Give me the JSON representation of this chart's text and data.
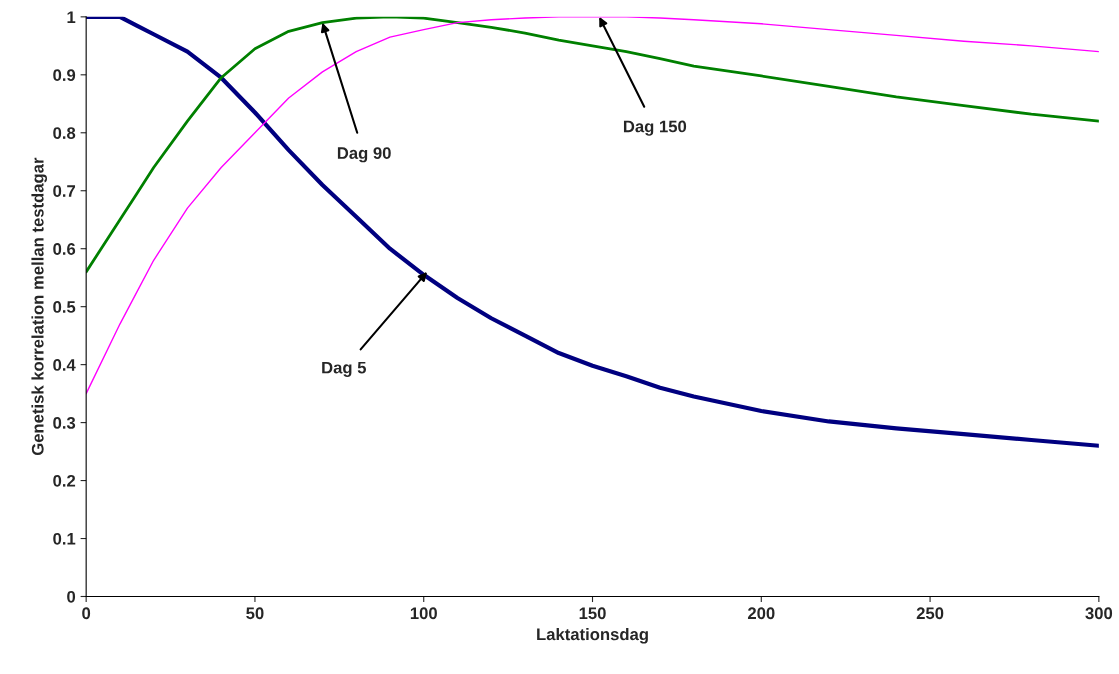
{
  "chart_data": {
    "type": "line",
    "xlabel": "Laktationsdag",
    "ylabel": "Genetisk korrelation mellan testdagar",
    "xlim": [
      0,
      300
    ],
    "xticks": [
      0,
      50,
      100,
      150,
      200,
      250,
      300
    ],
    "ylim": [
      0,
      1
    ],
    "yticks": [
      0,
      0.1,
      0.2,
      0.3,
      0.4,
      0.5,
      0.6,
      0.7,
      0.8,
      0.9,
      1
    ],
    "grid": false,
    "legend": false,
    "marker": "none",
    "line_style": "solid",
    "x": [
      0,
      10,
      15,
      20,
      30,
      40,
      50,
      60,
      70,
      80,
      90,
      100,
      110,
      120,
      130,
      140,
      150,
      160,
      170,
      180,
      200,
      220,
      240,
      260,
      280,
      300
    ],
    "series": [
      {
        "color": "#000080",
        "values": [
          1.0,
          1.0,
          0.985,
          0.97,
          0.94,
          0.895,
          0.835,
          0.77,
          0.71,
          0.655,
          0.6,
          0.555,
          0.515,
          0.48,
          0.45,
          0.42,
          0.398,
          0.38,
          0.36,
          0.345,
          0.32,
          0.302,
          0.29,
          0.28,
          0.27,
          0.26
        ]
      },
      {
        "color": "#008000",
        "values": [
          0.56,
          0.65,
          0.695,
          0.74,
          0.82,
          0.895,
          0.945,
          0.975,
          0.99,
          0.998,
          1.0,
          0.998,
          0.99,
          0.982,
          0.972,
          0.96,
          0.95,
          0.94,
          0.928,
          0.915,
          0.898,
          0.88,
          0.862,
          0.847,
          0.832,
          0.82
        ]
      },
      {
        "color": "#ff00ff",
        "values": [
          0.35,
          0.47,
          0.525,
          0.58,
          0.67,
          0.74,
          0.8,
          0.86,
          0.905,
          0.94,
          0.965,
          0.978,
          0.99,
          0.995,
          0.998,
          1.0,
          1.0,
          1.0,
          0.998,
          0.995,
          0.988,
          0.978,
          0.968,
          0.958,
          0.95,
          0.94
        ]
      }
    ],
    "annotations": [
      {
        "text": "Dag 90",
        "x": 70,
        "y": 0.99
      },
      {
        "text": "Dag 150",
        "x": 152,
        "y": 1.0
      },
      {
        "text": "Dag 5",
        "x": 101,
        "y": 0.56
      }
    ]
  }
}
